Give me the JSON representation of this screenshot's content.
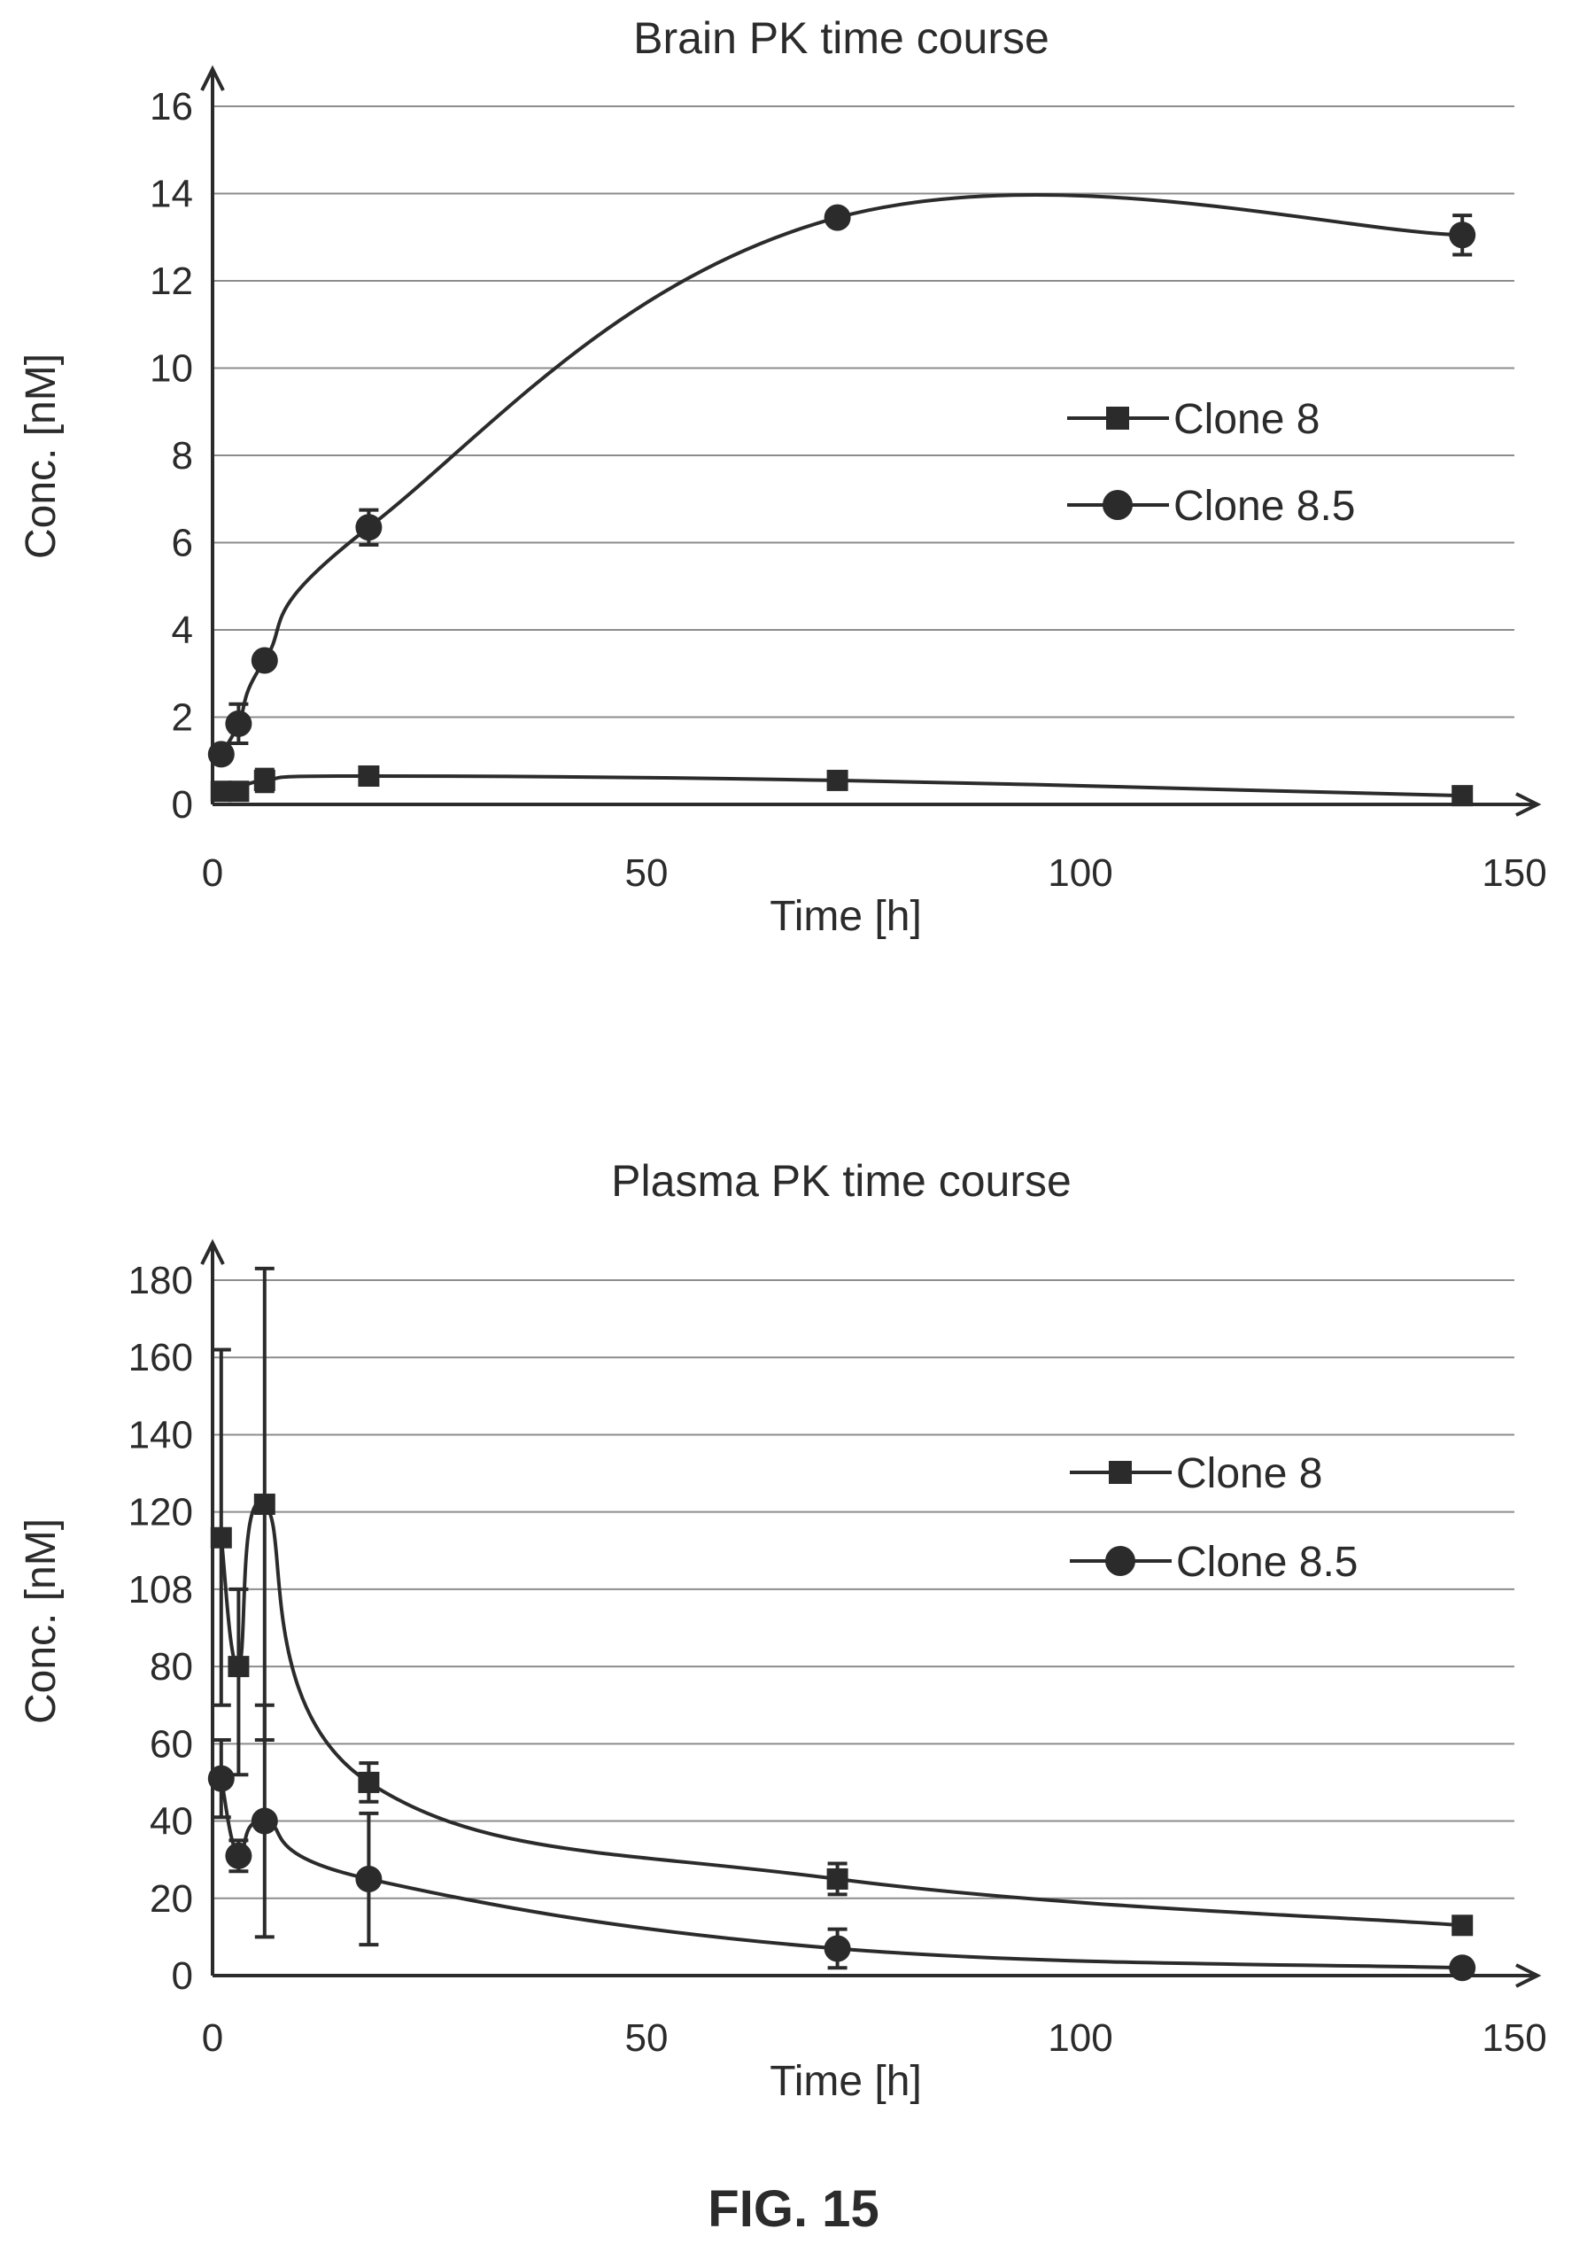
{
  "figure_label": "FIG. 15",
  "chart_data": [
    {
      "type": "line",
      "title": "Brain PK time course",
      "xlabel": "Time [h]",
      "ylabel": "Conc. [nM]",
      "xlim": [
        0,
        150
      ],
      "ylim": [
        0,
        16
      ],
      "xticks": [
        "0",
        "50",
        "100",
        "150"
      ],
      "yticks": [
        "0",
        "2",
        "4",
        "6",
        "8",
        "10",
        "12",
        "14",
        "16"
      ],
      "grid": true,
      "legend_position": "right",
      "series": [
        {
          "name": "Clone 8",
          "marker": "square",
          "x": [
            1,
            3,
            6,
            18,
            72,
            144
          ],
          "y": [
            0.3,
            0.3,
            0.55,
            0.65,
            0.55,
            0.2
          ],
          "err": [
            0,
            0,
            0.25,
            0.1,
            0.05,
            0.05
          ]
        },
        {
          "name": "Clone 8.5",
          "marker": "circle",
          "x": [
            1,
            3,
            6,
            18,
            72,
            144
          ],
          "y": [
            1.15,
            1.85,
            3.3,
            6.35,
            13.45,
            13.05
          ],
          "err": [
            0.05,
            0.45,
            0.1,
            0.4,
            0.05,
            0.45
          ]
        }
      ]
    },
    {
      "type": "line",
      "title": "Plasma PK time course",
      "xlabel": "Time [h]",
      "ylabel": "Conc. [nM]",
      "xlim": [
        0,
        150
      ],
      "ylim": [
        0,
        180
      ],
      "xticks": [
        "0",
        "50",
        "100",
        "150"
      ],
      "yticks": [
        "0",
        "20",
        "40",
        "60",
        "80",
        "108",
        "120",
        "140",
        "160",
        "180"
      ],
      "grid": true,
      "legend_position": "right",
      "series": [
        {
          "name": "Clone 8",
          "marker": "square",
          "x": [
            1,
            3,
            6,
            18,
            72,
            144
          ],
          "y": [
            116,
            80,
            122,
            50,
            25,
            13
          ],
          "err": [
            46,
            28,
            61,
            5,
            4,
            1
          ]
        },
        {
          "name": "Clone 8.5",
          "marker": "circle",
          "x": [
            1,
            3,
            6,
            18,
            72,
            144
          ],
          "y": [
            51,
            31,
            40,
            25,
            7,
            2
          ],
          "err": [
            10,
            4,
            30,
            17,
            5,
            1
          ]
        }
      ]
    }
  ]
}
